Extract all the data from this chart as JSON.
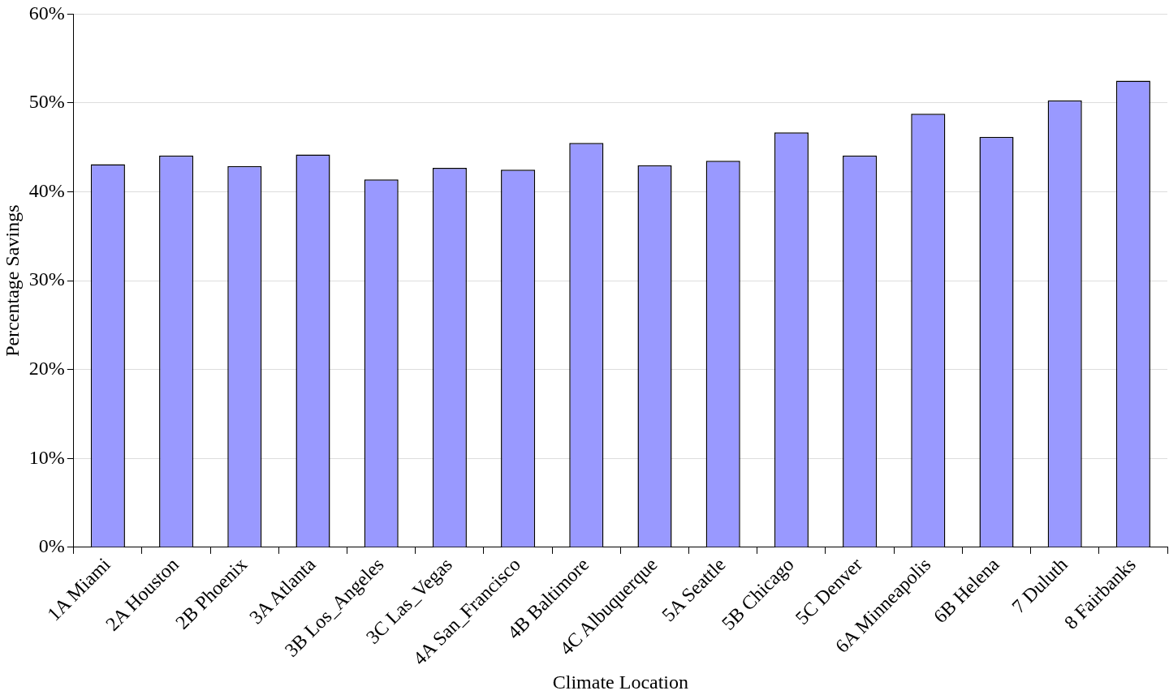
{
  "chart_data": {
    "type": "bar",
    "xlabel": "Climate Location",
    "ylabel": "Percentage Savings",
    "categories": [
      "1A Miami",
      "2A Houston",
      "2B Phoenix",
      "3A Atlanta",
      "3B Los_Angeles",
      "3C Las_Vegas",
      "4A San_Francisco",
      "4B Baltimore",
      "4C Albuquerque",
      "5A Seattle",
      "5B Chicago",
      "5C Denver",
      "6A Minneapolis",
      "6B Helena",
      "7 Duluth",
      "8 Fairbanks"
    ],
    "values": [
      43.1,
      44.1,
      42.9,
      44.2,
      41.4,
      42.7,
      42.5,
      45.5,
      43.0,
      43.5,
      46.7,
      44.1,
      48.8,
      46.2,
      50.3,
      52.5
    ],
    "color": "#9999ff",
    "ylim": [
      0,
      60
    ],
    "yticks": [
      {
        "value": 0,
        "label": "0%"
      },
      {
        "value": 10,
        "label": "10%"
      },
      {
        "value": 20,
        "label": "20%"
      },
      {
        "value": 30,
        "label": "30%"
      },
      {
        "value": 40,
        "label": "40%"
      },
      {
        "value": 50,
        "label": "50%"
      },
      {
        "value": 60,
        "label": "60%"
      }
    ],
    "grid": "y",
    "legend": false
  }
}
